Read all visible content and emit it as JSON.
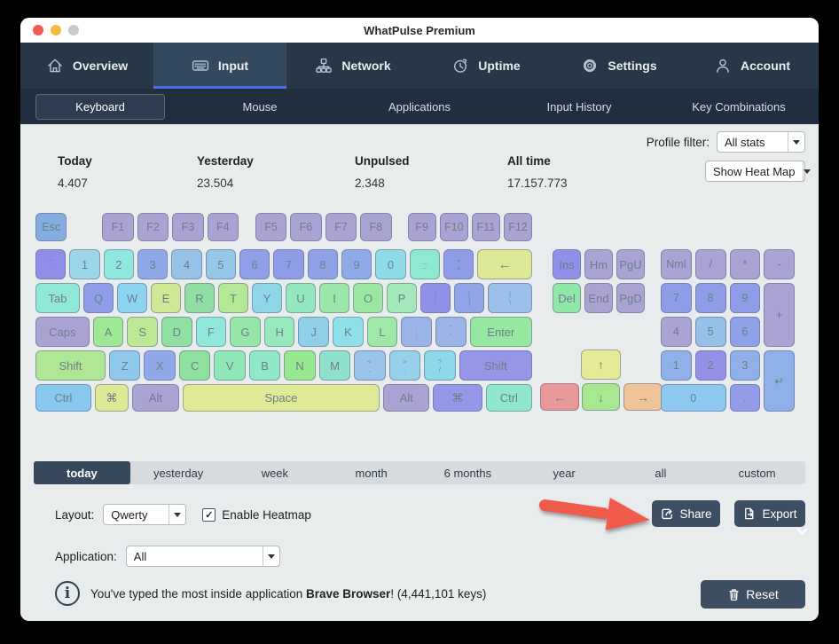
{
  "window": {
    "title": "WhatPulse Premium",
    "traffic_lights": {
      "close": "#f45c51",
      "minimize": "#f6bd3c",
      "zoom": "#c9c9c9"
    }
  },
  "nav": {
    "active": "Input",
    "tabs": [
      {
        "label": "Overview",
        "icon": "home-icon"
      },
      {
        "label": "Input",
        "icon": "keyboard-icon"
      },
      {
        "label": "Network",
        "icon": "network-icon"
      },
      {
        "label": "Uptime",
        "icon": "clock-icon"
      },
      {
        "label": "Settings",
        "icon": "gear-icon"
      },
      {
        "label": "Account",
        "icon": "person-icon"
      }
    ]
  },
  "subnav": {
    "active": "Keyboard",
    "items": [
      "Keyboard",
      "Mouse",
      "Applications",
      "Input History",
      "Key Combinations"
    ]
  },
  "stats": [
    {
      "label": "Today",
      "value": "4.407"
    },
    {
      "label": "Yesterday",
      "value": "23.504"
    },
    {
      "label": "Unpulsed",
      "value": "2.348"
    },
    {
      "label": "All time",
      "value": "17.157.773"
    }
  ],
  "profile_filter": {
    "label": "Profile filter:",
    "value": "All stats"
  },
  "heatmap_dropdown": {
    "value": "Show Heat Map"
  },
  "keyboard": {
    "rows": [
      [
        {
          "g": "Esc",
          "c": "#85aee0",
          "f": 1
        },
        {
          "sp": 0.95
        },
        {
          "g": "F1",
          "c": "#aba3d4",
          "f": 1
        },
        {
          "g": "F2",
          "c": "#aba3d4",
          "f": 1
        },
        {
          "g": "F3",
          "c": "#aba3d4",
          "f": 1
        },
        {
          "g": "F4",
          "c": "#aba3d4",
          "f": 1
        },
        {
          "sp": 0.32
        },
        {
          "g": "F5",
          "c": "#aba3d4",
          "f": 1
        },
        {
          "g": "F6",
          "c": "#aba3d4",
          "f": 1
        },
        {
          "g": "F7",
          "c": "#aba3d4",
          "f": 1
        },
        {
          "g": "F8",
          "c": "#aba3d4",
          "f": 1
        },
        {
          "sp": 0.3
        },
        {
          "g": "F9",
          "c": "#aba3d4",
          "f": 0.9
        },
        {
          "g": "F10",
          "c": "#aba3d4",
          "f": 0.9
        },
        {
          "g": "F11",
          "c": "#aba3d4",
          "f": 0.9
        },
        {
          "g": "F12",
          "c": "#aba3d4",
          "f": 0.9
        }
      ],
      [
        {
          "top": "~",
          "bot": "`",
          "c": "#908fe8",
          "f": 1
        },
        {
          "g": "1",
          "c": "#9cd6e8",
          "f": 1
        },
        {
          "g": "2",
          "c": "#8ee8e0",
          "f": 1
        },
        {
          "g": "3",
          "c": "#8fa8e8",
          "f": 1
        },
        {
          "g": "4",
          "c": "#96c2e8",
          "f": 1
        },
        {
          "g": "5",
          "c": "#96c6e8",
          "f": 1
        },
        {
          "g": "6",
          "c": "#8fa0e8",
          "f": 1
        },
        {
          "g": "7",
          "c": "#8f9ce8",
          "f": 1
        },
        {
          "g": "8",
          "c": "#8fa2e8",
          "f": 1
        },
        {
          "g": "9",
          "c": "#8faae8",
          "f": 1
        },
        {
          "g": "0",
          "c": "#8edce8",
          "f": 1
        },
        {
          "top": "_",
          "bot": "-",
          "c": "#8ee8d2",
          "f": 1
        },
        {
          "top": "+",
          "bot": "=",
          "c": "#8f9ce8",
          "f": 1
        },
        {
          "g": "←",
          "c": "#dde896",
          "f": 1.85,
          "cls": "kbs"
        }
      ],
      [
        {
          "g": "Tab",
          "c": "#90e8d8",
          "f": 1.5
        },
        {
          "g": "Q",
          "c": "#8f9ee8",
          "f": 1
        },
        {
          "g": "W",
          "c": "#8dd4f0",
          "f": 1
        },
        {
          "g": "E",
          "c": "#cfe896",
          "f": 1
        },
        {
          "g": "R",
          "c": "#8fdea4",
          "f": 1
        },
        {
          "g": "T",
          "c": "#b2e896",
          "f": 1
        },
        {
          "g": "Y",
          "c": "#8fd6e8",
          "f": 1
        },
        {
          "g": "U",
          "c": "#93e8c0",
          "f": 1
        },
        {
          "g": "I",
          "c": "#9ce8aa",
          "f": 1
        },
        {
          "g": "O",
          "c": "#9ce8a2",
          "f": 1
        },
        {
          "g": "P",
          "c": "#a2e8b8",
          "f": 1
        },
        {
          "top": "{",
          "bot": "[",
          "c": "#8f90e8",
          "f": 1
        },
        {
          "top": "}",
          "bot": "]",
          "c": "#90a6e8",
          "f": 1
        },
        {
          "top": "|",
          "bot": "\\",
          "c": "#9cc0ea",
          "f": 1.5
        }
      ],
      [
        {
          "g": "Caps",
          "c": "#aba3d4",
          "f": 1.8
        },
        {
          "g": "A",
          "c": "#9fe896",
          "f": 1
        },
        {
          "g": "S",
          "c": "#bce896",
          "f": 1
        },
        {
          "g": "D",
          "c": "#90e0a2",
          "f": 1
        },
        {
          "g": "F",
          "c": "#8fe8da",
          "f": 1
        },
        {
          "g": "G",
          "c": "#97e8a8",
          "f": 1
        },
        {
          "g": "H",
          "c": "#97e8ba",
          "f": 1
        },
        {
          "g": "J",
          "c": "#8fd0e8",
          "f": 1
        },
        {
          "g": "K",
          "c": "#8fe0e8",
          "f": 1
        },
        {
          "g": "L",
          "c": "#9fe8a8",
          "f": 1
        },
        {
          "top": ":",
          "bot": ";",
          "c": "#9ab4e8",
          "f": 1
        },
        {
          "top": "\"",
          "bot": "'",
          "c": "#9ab4e8",
          "f": 1
        },
        {
          "g": "Enter",
          "c": "#97e8a0",
          "f": 2.1
        }
      ],
      [
        {
          "g": "Shift",
          "c": "#aee896",
          "f": 2.3
        },
        {
          "g": "Z",
          "c": "#8fc8ea",
          "f": 1
        },
        {
          "g": "X",
          "c": "#8fa8e8",
          "f": 1
        },
        {
          "g": "C",
          "c": "#90e0a0",
          "f": 1
        },
        {
          "g": "V",
          "c": "#90e8b8",
          "f": 1
        },
        {
          "g": "B",
          "c": "#8fe8c8",
          "f": 1
        },
        {
          "g": "N",
          "c": "#97e890",
          "f": 1
        },
        {
          "g": "M",
          "c": "#8fe0cc",
          "f": 1
        },
        {
          "top": "<",
          "bot": ",",
          "c": "#9ac4ea",
          "f": 1
        },
        {
          "top": ">",
          "bot": ".",
          "c": "#96d0ea",
          "f": 1
        },
        {
          "top": "?",
          "bot": "/",
          "c": "#8fd8ea",
          "f": 1
        },
        {
          "g": "Shift",
          "c": "#9695e8",
          "f": 2.4
        }
      ],
      [
        {
          "g": "Ctrl",
          "c": "#87c8ee",
          "f": 1.65
        },
        {
          "g": "⌘",
          "c": "#dcea96",
          "f": 1
        },
        {
          "g": "Alt",
          "c": "#aba3d4",
          "f": 1.37
        },
        {
          "g": "Space",
          "c": "#e0ea96",
          "f": 6
        },
        {
          "g": "Alt",
          "c": "#aba3d4",
          "f": 1.37
        },
        {
          "g": "⌘",
          "c": "#9598e8",
          "f": 1.45
        },
        {
          "g": "Ctrl",
          "c": "#90e8cc",
          "f": 1.37
        }
      ]
    ],
    "nav_cluster": [
      [
        {
          "g": "Ins",
          "c": "#8f90e8"
        },
        {
          "g": "Hm",
          "c": "#aba3d4"
        },
        {
          "g": "PgU",
          "c": "#aba3d4"
        }
      ],
      [
        {
          "g": "Del",
          "c": "#90e8a8"
        },
        {
          "g": "End",
          "c": "#aba3d4"
        },
        {
          "g": "PgD",
          "c": "#aba3d4"
        }
      ]
    ],
    "arrows": {
      "up": {
        "g": "↑",
        "c": "#e5ea96"
      },
      "left": {
        "g": "←",
        "c": "#e89898"
      },
      "down": {
        "g": "↓",
        "c": "#a8e890"
      },
      "right": {
        "g": "→",
        "c": "#f0c498"
      }
    },
    "numpad": [
      {
        "g": "Nml",
        "c": "#aba3d4",
        "r": 1,
        "co": 1
      },
      {
        "g": "/",
        "c": "#aba3d4",
        "r": 1,
        "co": 2
      },
      {
        "g": "*",
        "c": "#aba3d4",
        "r": 1,
        "co": 3
      },
      {
        "g": "-",
        "c": "#aba3d4",
        "r": 1,
        "co": 4
      },
      {
        "g": "7",
        "c": "#8f9ce8",
        "r": 2,
        "co": 1
      },
      {
        "g": "8",
        "c": "#8f9ce8",
        "r": 2,
        "co": 2
      },
      {
        "g": "9",
        "c": "#8f9ce8",
        "r": 2,
        "co": 3
      },
      {
        "g": "+",
        "c": "#aba3d4",
        "r": 2,
        "co": 4,
        "rs": 2
      },
      {
        "g": "4",
        "c": "#aba3d4",
        "r": 3,
        "co": 1
      },
      {
        "g": "5",
        "c": "#96c0e8",
        "r": 3,
        "co": 2
      },
      {
        "g": "6",
        "c": "#8fa2e8",
        "r": 3,
        "co": 3
      },
      {
        "g": "1",
        "c": "#8fb0e8",
        "r": 4,
        "co": 1
      },
      {
        "g": "2",
        "c": "#9390e8",
        "r": 4,
        "co": 2
      },
      {
        "g": "3",
        "c": "#8fb0e8",
        "r": 4,
        "co": 3
      },
      {
        "g": "↵",
        "c": "#8fb0e8",
        "r": 4,
        "co": 4,
        "rs": 2
      },
      {
        "g": "0",
        "c": "#8cc8f0",
        "r": 5,
        "co": 1,
        "cs": 2
      },
      {
        "g": ".",
        "c": "#929ce8",
        "r": 5,
        "co": 3
      }
    ]
  },
  "time_range": {
    "active": "today",
    "items": [
      "today",
      "yesterday",
      "week",
      "month",
      "6 months",
      "year",
      "all",
      "custom"
    ]
  },
  "layout_controls": {
    "label": "Layout:",
    "value": "Qwerty",
    "checkbox_checked": "✓",
    "checkbox_label": "Enable Heatmap"
  },
  "share_button": "Share",
  "export_button": "Export",
  "application_filter": {
    "label": "Application:",
    "value": "All"
  },
  "info": {
    "prefix": "You've typed the most inside application ",
    "app": "Brave Browser",
    "suffix": "! (4,441,101 keys)"
  },
  "reset_button": "Reset",
  "colors": {
    "accent_underline": "#4a6cea",
    "button_navy": "#3d4e63",
    "annotation_arrow": "#f15b4c",
    "nav_bg": "#273748",
    "subnav_bg": "#202e3f"
  }
}
